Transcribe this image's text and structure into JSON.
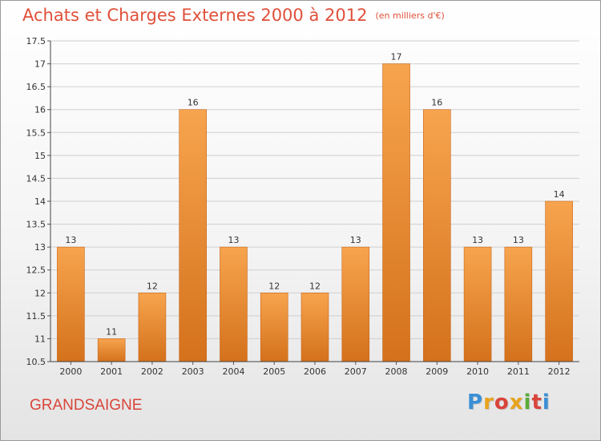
{
  "header": {
    "title": "Achats et Charges Externes 2000 à 2012",
    "subtitle": "(en milliers d'€)"
  },
  "footer": {
    "commune": "GRANDSAIGNE",
    "logo_text": "Proxiti",
    "logo_colors": [
      "#3a8fd6",
      "#e8a21d",
      "#d9443a",
      "#e8a21d",
      "#5aaa3a",
      "#d9443a",
      "#3a8fd6"
    ]
  },
  "colors": {
    "bar_top": "#f7a44e",
    "bar_bottom": "#d4711c",
    "grid": "#cfcfcf",
    "title": "#e0503a"
  },
  "chart_data": {
    "type": "bar",
    "title": "Achats et Charges Externes 2000 à 2012",
    "subtitle": "(en milliers d'€)",
    "xlabel": "",
    "ylabel": "",
    "categories": [
      "2000",
      "2001",
      "2002",
      "2003",
      "2004",
      "2005",
      "2006",
      "2007",
      "2008",
      "2009",
      "2010",
      "2011",
      "2012"
    ],
    "values": [
      13,
      11,
      12,
      16,
      13,
      12,
      12,
      13,
      17,
      16,
      13,
      13,
      14
    ],
    "ylim": [
      10.5,
      17.5
    ],
    "yticks": [
      "10.5",
      "11",
      "11.5",
      "12",
      "12.5",
      "13",
      "13.5",
      "14",
      "14.5",
      "15",
      "15.5",
      "16",
      "16.5",
      "17",
      "17.5"
    ],
    "grid": true,
    "legend": "none"
  }
}
